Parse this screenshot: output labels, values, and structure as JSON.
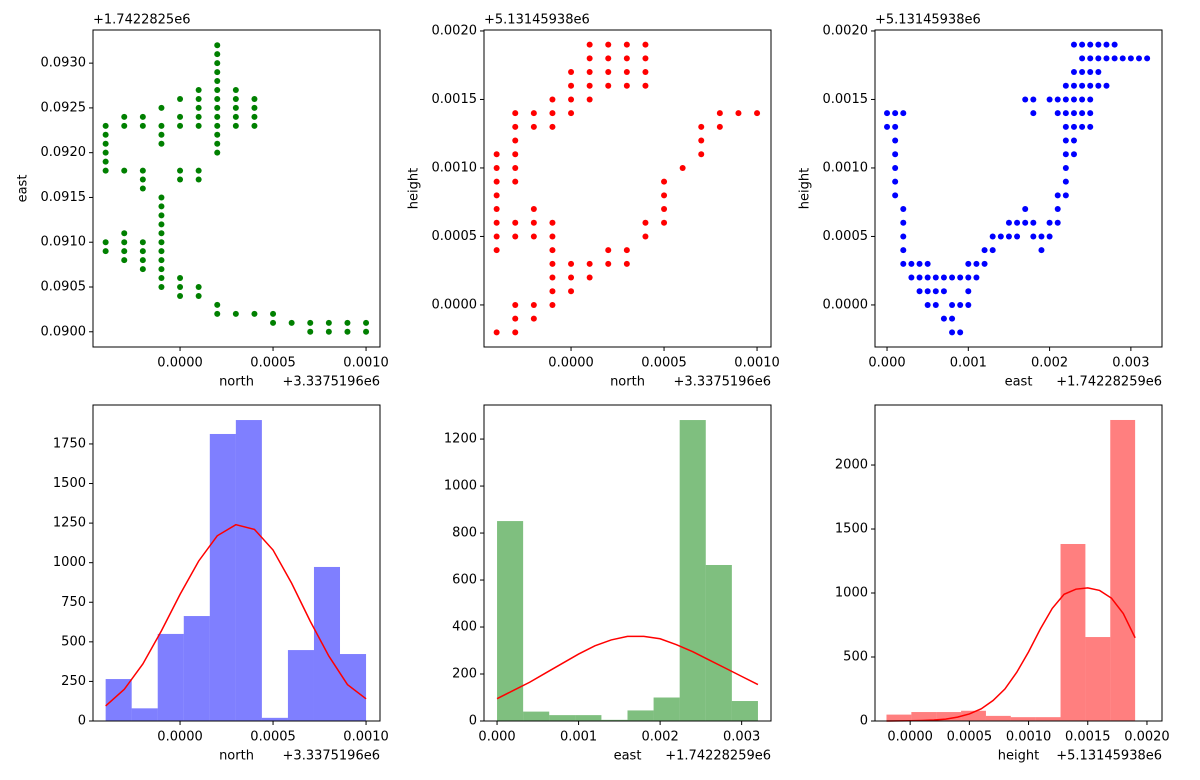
{
  "chart_data": [
    {
      "type": "scatter",
      "xlabel": "north",
      "ylabel": "east",
      "x_offset": "+3.3375196e6",
      "y_offset": "+1.7422825e6",
      "color": "#008000",
      "xlim": [
        -0.000468,
        0.001075
      ],
      "ylim": [
        0.08983,
        0.09337
      ],
      "xticks": [
        {
          "value": 0,
          "label": "0.0000"
        },
        {
          "value": 0.0005,
          "label": "0.0005"
        },
        {
          "value": 0.001,
          "label": "0.0010"
        }
      ],
      "yticks": [
        {
          "value": 0.09,
          "label": "0.0900"
        },
        {
          "value": 0.0905,
          "label": "0.0905"
        },
        {
          "value": 0.091,
          "label": "0.0910"
        },
        {
          "value": 0.0915,
          "label": "0.0915"
        },
        {
          "value": 0.092,
          "label": "0.0920"
        },
        {
          "value": 0.0925,
          "label": "0.0925"
        },
        {
          "value": 0.093,
          "label": "0.0930"
        }
      ],
      "x": [
        -0.0004,
        -0.0004,
        -0.0004,
        -0.0004,
        -0.0004,
        -0.0004,
        -0.0004,
        -0.0004,
        -0.0003,
        -0.0003,
        -0.0003,
        -0.0003,
        -0.0003,
        -0.0003,
        -0.0003,
        -0.0002,
        -0.0002,
        -0.0002,
        -0.0002,
        -0.0002,
        -0.0002,
        -0.0002,
        -0.0002,
        -0.0002,
        -0.0001,
        -0.0001,
        -0.0001,
        -0.0001,
        -0.0001,
        -0.0001,
        -0.0001,
        -0.0001,
        -0.0001,
        -0.0001,
        -0.0001,
        -0.0001,
        -0.0001,
        -0.0001,
        -0.0001,
        0,
        0,
        0,
        0,
        0,
        0,
        0,
        0,
        0.0001,
        0.0001,
        0.0001,
        0.0001,
        0.0001,
        0.0001,
        0.0001,
        0.0001,
        0.0001,
        0.0002,
        0.0002,
        0.0002,
        0.0002,
        0.0002,
        0.0002,
        0.0002,
        0.0002,
        0.0002,
        0.0002,
        0.0002,
        0.0002,
        0.0002,
        0.0002,
        0.0002,
        0.0003,
        0.0003,
        0.0003,
        0.0003,
        0.0003,
        0.0003,
        0.0004,
        0.0004,
        0.0004,
        0.0004,
        0.0004,
        0.0005,
        0.0005,
        0.0006,
        0.0007,
        0.0007,
        0.0008,
        0.0008,
        0.0009,
        0.0009,
        0.001,
        0.001
      ],
      "values": [
        0.0923,
        0.0922,
        0.0921,
        0.092,
        0.0919,
        0.0918,
        0.091,
        0.0909,
        0.0924,
        0.0923,
        0.0918,
        0.0911,
        0.091,
        0.0909,
        0.0908,
        0.0924,
        0.0923,
        0.0918,
        0.0917,
        0.0916,
        0.091,
        0.0909,
        0.0908,
        0.0907,
        0.0925,
        0.0923,
        0.0922,
        0.0921,
        0.0915,
        0.0914,
        0.0913,
        0.0912,
        0.0911,
        0.091,
        0.0909,
        0.0908,
        0.0907,
        0.0906,
        0.0905,
        0.0926,
        0.0924,
        0.0923,
        0.0918,
        0.0917,
        0.0906,
        0.0905,
        0.0904,
        0.0927,
        0.0926,
        0.0925,
        0.0924,
        0.0923,
        0.0918,
        0.0917,
        0.0905,
        0.0904,
        0.0932,
        0.0931,
        0.093,
        0.0929,
        0.0928,
        0.0927,
        0.0926,
        0.0925,
        0.0924,
        0.0923,
        0.0922,
        0.0921,
        0.092,
        0.0903,
        0.0902,
        0.0927,
        0.0926,
        0.0925,
        0.0924,
        0.0923,
        0.0902,
        0.0926,
        0.0925,
        0.0924,
        0.0923,
        0.0902,
        0.0902,
        0.0901,
        0.0901,
        0.0901,
        0.09,
        0.0901,
        0.09,
        0.0901,
        0.09,
        0.0901,
        0.09
      ]
    },
    {
      "type": "scatter",
      "xlabel": "north",
      "ylabel": "height",
      "x_offset": "+3.3375196e6",
      "y_offset": "+5.13145938e6",
      "color": "#ff0000",
      "xlim": [
        -0.000468,
        0.001075
      ],
      "ylim": [
        -0.000307,
        0.002007
      ],
      "xticks": [
        {
          "value": 0,
          "label": "0.0000"
        },
        {
          "value": 0.0005,
          "label": "0.0005"
        },
        {
          "value": 0.001,
          "label": "0.0010"
        }
      ],
      "yticks": [
        {
          "value": 0,
          "label": "0.0000"
        },
        {
          "value": 0.0005,
          "label": "0.0005"
        },
        {
          "value": 0.001,
          "label": "0.0010"
        },
        {
          "value": 0.0015,
          "label": "0.0015"
        },
        {
          "value": 0.002,
          "label": "0.0020"
        }
      ],
      "x": [
        -0.0004,
        -0.0004,
        -0.0004,
        -0.0004,
        -0.0004,
        -0.0004,
        -0.0004,
        -0.0004,
        -0.0004,
        -0.0003,
        -0.0003,
        -0.0003,
        -0.0003,
        -0.0003,
        -0.0003,
        -0.0003,
        -0.0003,
        -0.0003,
        -0.0003,
        -0.0003,
        -0.0002,
        -0.0002,
        -0.0002,
        -0.0002,
        -0.0002,
        -0.0002,
        -0.0002,
        -0.0001,
        -0.0001,
        -0.0001,
        -0.0001,
        -0.0001,
        -0.0001,
        -0.0001,
        -0.0001,
        -0.0001,
        -0.0001,
        0,
        0,
        0,
        0,
        0,
        0,
        0,
        0.0001,
        0.0001,
        0.0001,
        0.0001,
        0.0001,
        0.0001,
        0.0001,
        0.0002,
        0.0002,
        0.0002,
        0.0002,
        0.0002,
        0.0002,
        0.0003,
        0.0003,
        0.0003,
        0.0003,
        0.0003,
        0.0003,
        0.0004,
        0.0004,
        0.0004,
        0.0004,
        0.0004,
        0.0004,
        0.0005,
        0.0005,
        0.0005,
        0.0005,
        0.0006,
        0.0007,
        0.0007,
        0.0007,
        0.0008,
        0.0008,
        0.0009,
        0.001
      ],
      "values": [
        0.0011,
        0.001,
        0.0009,
        0.0008,
        0.0007,
        0.0006,
        0.0005,
        0.0004,
        -0.0002,
        0.0014,
        0.0013,
        0.0012,
        0.0011,
        0.001,
        0.0009,
        0.0006,
        0.0005,
        0,
        -0.0001,
        -0.0002,
        0.0014,
        0.0013,
        0.0007,
        0.0006,
        0.0005,
        0,
        -0.0001,
        0.0015,
        0.0014,
        0.0013,
        0.0006,
        0.0005,
        0.0004,
        0.0003,
        0.0002,
        0.0001,
        0,
        0.0017,
        0.0016,
        0.0015,
        0.0014,
        0.0003,
        0.0002,
        0.0001,
        0.0019,
        0.0018,
        0.0017,
        0.0016,
        0.0015,
        0.0003,
        0.0002,
        0.0019,
        0.0018,
        0.0017,
        0.0016,
        0.0004,
        0.0003,
        0.0019,
        0.0018,
        0.0017,
        0.0016,
        0.0004,
        0.0003,
        0.0019,
        0.0018,
        0.0017,
        0.0016,
        0.0006,
        0.0005,
        0.0009,
        0.0008,
        0.0007,
        0.0006,
        0.001,
        0.0013,
        0.0012,
        0.0011,
        0.0014,
        0.0013,
        0.0014,
        0.0014
      ]
    },
    {
      "type": "scatter",
      "xlabel": "east",
      "ylabel": "height",
      "x_offset": "+1.74228259e6",
      "y_offset": "+5.13145938e6",
      "color": "#0000ff",
      "xlim": [
        -0.000148,
        0.003383
      ],
      "ylim": [
        -0.000307,
        0.002007
      ],
      "xticks": [
        {
          "value": 0,
          "label": "0.000"
        },
        {
          "value": 0.001,
          "label": "0.001"
        },
        {
          "value": 0.002,
          "label": "0.002"
        },
        {
          "value": 0.003,
          "label": "0.003"
        }
      ],
      "yticks": [
        {
          "value": 0,
          "label": "0.0000"
        },
        {
          "value": 0.0005,
          "label": "0.0005"
        },
        {
          "value": 0.001,
          "label": "0.0010"
        },
        {
          "value": 0.0015,
          "label": "0.0015"
        },
        {
          "value": 0.002,
          "label": "0.0020"
        }
      ],
      "x": [
        0,
        0,
        0.0001,
        0.0001,
        0.0001,
        0.0001,
        0.0001,
        0.0001,
        0.0001,
        0.0002,
        0.0002,
        0.0002,
        0.0002,
        0.0002,
        0.0002,
        0.0003,
        0.0003,
        0.0004,
        0.0004,
        0.0004,
        0.0005,
        0.0005,
        0.0005,
        0.0005,
        0.0006,
        0.0006,
        0.0006,
        0.0007,
        0.0007,
        0.0007,
        0.0008,
        0.0008,
        0.0008,
        0.0008,
        0.0009,
        0.0009,
        0.0009,
        0.001,
        0.001,
        0.001,
        0.001,
        0.0011,
        0.0011,
        0.0012,
        0.0012,
        0.0013,
        0.0013,
        0.0014,
        0.0015,
        0.0015,
        0.0016,
        0.0016,
        0.0017,
        0.0017,
        0.0017,
        0.0018,
        0.0018,
        0.0018,
        0.0018,
        0.0019,
        0.0019,
        0.002,
        0.002,
        0.002,
        0.0021,
        0.0021,
        0.0021,
        0.0021,
        0.0021,
        0.0022,
        0.0022,
        0.0022,
        0.0022,
        0.0022,
        0.0022,
        0.0022,
        0.0022,
        0.0022,
        0.0023,
        0.0023,
        0.0023,
        0.0023,
        0.0023,
        0.0023,
        0.0023,
        0.0023,
        0.0024,
        0.0024,
        0.0024,
        0.0024,
        0.0024,
        0.0024,
        0.0024,
        0.0025,
        0.0025,
        0.0025,
        0.0025,
        0.0025,
        0.0025,
        0.0025,
        0.0026,
        0.0026,
        0.0026,
        0.0026,
        0.0027,
        0.0027,
        0.0027,
        0.0028,
        0.0028,
        0.0029,
        0.003,
        0.0031,
        0.0032
      ],
      "values": [
        0.0014,
        0.0013,
        0.0014,
        0.0013,
        0.0012,
        0.0011,
        0.001,
        0.0009,
        0.0008,
        0.0014,
        0.0007,
        0.0006,
        0.0005,
        0.0004,
        0.0003,
        0.0003,
        0.0002,
        0.0003,
        0.0002,
        0.0001,
        0.0003,
        0.0002,
        0.0001,
        0,
        0.0002,
        0.0001,
        0,
        0.0002,
        0.0001,
        -0.0001,
        0.0002,
        0,
        -0.0001,
        -0.0002,
        0.0002,
        0,
        -0.0002,
        0.0003,
        0.0002,
        0.0001,
        0,
        0.0003,
        0.0002,
        0.0004,
        0.0003,
        0.0005,
        0.0004,
        0.0005,
        0.0006,
        0.0005,
        0.0006,
        0.0005,
        0.0015,
        0.0007,
        0.0006,
        0.0015,
        0.0014,
        0.0006,
        0.0005,
        0.0005,
        0.0004,
        0.0015,
        0.0006,
        0.0005,
        0.0015,
        0.0014,
        0.0008,
        0.0007,
        0.0006,
        0.0016,
        0.0015,
        0.0014,
        0.0013,
        0.0012,
        0.0011,
        0.001,
        0.0009,
        0.0008,
        0.0019,
        0.0017,
        0.0016,
        0.0015,
        0.0014,
        0.0013,
        0.0012,
        0.0011,
        0.0019,
        0.0018,
        0.0017,
        0.0016,
        0.0015,
        0.0014,
        0.0013,
        0.0019,
        0.0018,
        0.0017,
        0.0016,
        0.0015,
        0.0014,
        0.0013,
        0.0019,
        0.0018,
        0.0017,
        0.0016,
        0.0019,
        0.0018,
        0.0016,
        0.0019,
        0.0018,
        0.0018,
        0.0018,
        0.0018,
        0.0018
      ]
    },
    {
      "type": "histogram",
      "xlabel": "north",
      "x_offset": "+3.3375196e6",
      "color": "#0000ff",
      "xlim": [
        -0.000468,
        0.001075
      ],
      "ylim": [
        0,
        1996
      ],
      "xticks": [
        {
          "value": 0,
          "label": "0.0000"
        },
        {
          "value": 0.0005,
          "label": "0.0005"
        },
        {
          "value": 0.001,
          "label": "0.0010"
        }
      ],
      "yticks": [
        0,
        250,
        500,
        750,
        1000,
        1250,
        1500,
        1750
      ],
      "bins": [
        -0.0004,
        -0.00026,
        -0.00012,
        2e-05,
        0.00016,
        0.0003,
        0.00044,
        0.00058,
        0.00072,
        0.00086,
        0.001
      ],
      "values": [
        265,
        80,
        550,
        663,
        1813,
        1901,
        20,
        448,
        973,
        423
      ],
      "kde": {
        "color": "#ff0000",
        "x": [
          -0.0004,
          -0.0003,
          -0.0002,
          -0.0001,
          0,
          0.0001,
          0.0002,
          0.0003,
          0.0004,
          0.0005,
          0.0006,
          0.0007,
          0.0008,
          0.0009,
          0.001
        ],
        "values": [
          95,
          200,
          360,
          570,
          800,
          1010,
          1170,
          1240,
          1210,
          1080,
          870,
          630,
          410,
          230,
          140
        ]
      }
    },
    {
      "type": "histogram",
      "xlabel": "east",
      "x_offset": "+1.74228259e6",
      "color": "#008000",
      "xlim": [
        -0.00016,
        0.00336
      ],
      "ylim": [
        0,
        1345
      ],
      "xticks": [
        {
          "value": 0,
          "label": "0.000"
        },
        {
          "value": 0.001,
          "label": "0.001"
        },
        {
          "value": 0.002,
          "label": "0.002"
        },
        {
          "value": 0.003,
          "label": "0.003"
        }
      ],
      "yticks": [
        0,
        200,
        400,
        600,
        800,
        1000,
        1200
      ],
      "bins": [
        0,
        0.00032,
        0.00064,
        0.00096,
        0.00128,
        0.0016,
        0.00192,
        0.00224,
        0.00256,
        0.00288,
        0.0032
      ],
      "values": [
        851,
        40,
        25,
        25,
        5,
        45,
        100,
        1281,
        664,
        85
      ],
      "kde": {
        "color": "#ff0000",
        "x": [
          0,
          0.0002,
          0.0004,
          0.0006,
          0.0008,
          0.001,
          0.0012,
          0.0014,
          0.0016,
          0.0018,
          0.002,
          0.0022,
          0.0024,
          0.0026,
          0.0028,
          0.003,
          0.0032
        ],
        "values": [
          95,
          130,
          165,
          205,
          245,
          285,
          320,
          345,
          360,
          360,
          350,
          325,
          295,
          260,
          225,
          190,
          155
        ]
      }
    },
    {
      "type": "histogram",
      "xlabel": "height",
      "x_offset": "+5.13145938e6",
      "color": "#ff0000",
      "xlim": [
        -0.000297,
        0.002127
      ],
      "ylim": [
        0,
        2469
      ],
      "xticks": [
        {
          "value": 0,
          "label": "0.0000"
        },
        {
          "value": 0.0005,
          "label": "0.0005"
        },
        {
          "value": 0.001,
          "label": "0.0010"
        },
        {
          "value": 0.0015,
          "label": "0.0015"
        },
        {
          "value": 0.002,
          "label": "0.0020"
        }
      ],
      "yticks": [
        0,
        500,
        1000,
        1500,
        2000
      ],
      "bins": [
        -0.0002,
        1e-05,
        0.00022,
        0.00043,
        0.00064,
        0.00085,
        0.00106,
        0.00127,
        0.00148,
        0.00169,
        0.0019
      ],
      "values": [
        50,
        70,
        70,
        80,
        40,
        30,
        30,
        1383,
        656,
        2352
      ],
      "kde": {
        "color": "#ff0000",
        "x": [
          -0.0002,
          -0.0001,
          0,
          0.0001,
          0.0002,
          0.0003,
          0.0004,
          0.0005,
          0.0006,
          0.0007,
          0.0008,
          0.0009,
          0.001,
          0.0011,
          0.0012,
          0.0013,
          0.0014,
          0.0015,
          0.0016,
          0.0017,
          0.0018,
          0.0019
        ],
        "values": [
          0,
          1,
          2,
          4,
          8,
          15,
          30,
          55,
          95,
          160,
          250,
          380,
          540,
          720,
          880,
          990,
          1030,
          1040,
          1020,
          960,
          840,
          650
        ]
      }
    }
  ]
}
